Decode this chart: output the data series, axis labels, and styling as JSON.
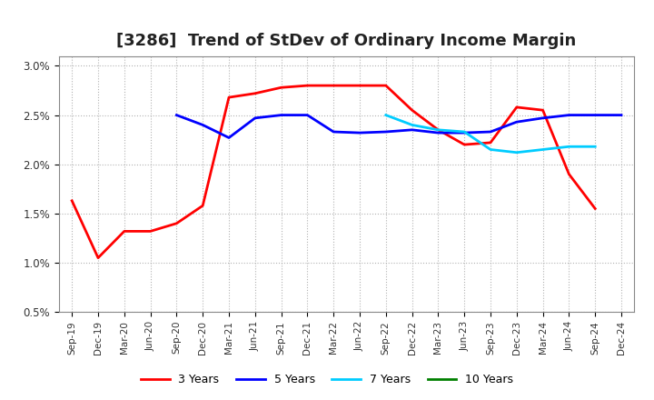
{
  "title": "[3286]  Trend of StDev of Ordinary Income Margin",
  "title_fontsize": 13,
  "xlabels": [
    "Sep-19",
    "Dec-19",
    "Mar-20",
    "Jun-20",
    "Sep-20",
    "Dec-20",
    "Mar-21",
    "Jun-21",
    "Sep-21",
    "Dec-21",
    "Mar-22",
    "Jun-22",
    "Sep-22",
    "Dec-22",
    "Mar-23",
    "Jun-23",
    "Sep-23",
    "Dec-23",
    "Mar-24",
    "Jun-24",
    "Sep-24",
    "Dec-24"
  ],
  "ylim": [
    0.005,
    0.031
  ],
  "yticks": [
    0.005,
    0.01,
    0.015,
    0.02,
    0.025,
    0.03
  ],
  "ytick_labels": [
    "0.5%",
    "1.0%",
    "1.5%",
    "2.0%",
    "2.5%",
    "3.0%"
  ],
  "series": {
    "3 Years": {
      "color": "#FF0000",
      "linewidth": 2.0,
      "values": [
        0.0163,
        0.0105,
        0.0132,
        0.0132,
        0.014,
        0.0158,
        0.0268,
        0.0272,
        0.0278,
        0.028,
        0.028,
        0.028,
        0.028,
        0.0255,
        0.0235,
        0.022,
        0.0222,
        0.0258,
        0.0255,
        0.019,
        0.0155,
        null
      ]
    },
    "5 Years": {
      "color": "#0000FF",
      "linewidth": 2.0,
      "values": [
        null,
        null,
        null,
        null,
        0.025,
        0.024,
        0.0227,
        0.0247,
        0.025,
        0.025,
        0.0233,
        0.0232,
        0.0233,
        0.0235,
        0.0232,
        0.0232,
        0.0233,
        0.0243,
        0.0247,
        0.025,
        0.025,
        0.025
      ]
    },
    "7 Years": {
      "color": "#00CCFF",
      "linewidth": 2.0,
      "values": [
        null,
        null,
        null,
        null,
        null,
        null,
        null,
        null,
        null,
        null,
        null,
        null,
        0.025,
        0.024,
        0.0235,
        0.0233,
        0.0215,
        0.0212,
        0.0215,
        0.0218,
        0.0218,
        null
      ]
    },
    "10 Years": {
      "color": "#008000",
      "linewidth": 2.0,
      "values": [
        null,
        null,
        null,
        null,
        null,
        null,
        null,
        null,
        null,
        null,
        null,
        null,
        null,
        null,
        null,
        null,
        null,
        null,
        null,
        null,
        null,
        null
      ]
    }
  },
  "legend_labels": [
    "3 Years",
    "5 Years",
    "7 Years",
    "10 Years"
  ],
  "legend_colors": [
    "#FF0000",
    "#0000FF",
    "#00CCFF",
    "#008000"
  ],
  "background_color": "#FFFFFF",
  "plot_bg_color": "#FFFFFF",
  "grid_color": "#AAAAAA"
}
